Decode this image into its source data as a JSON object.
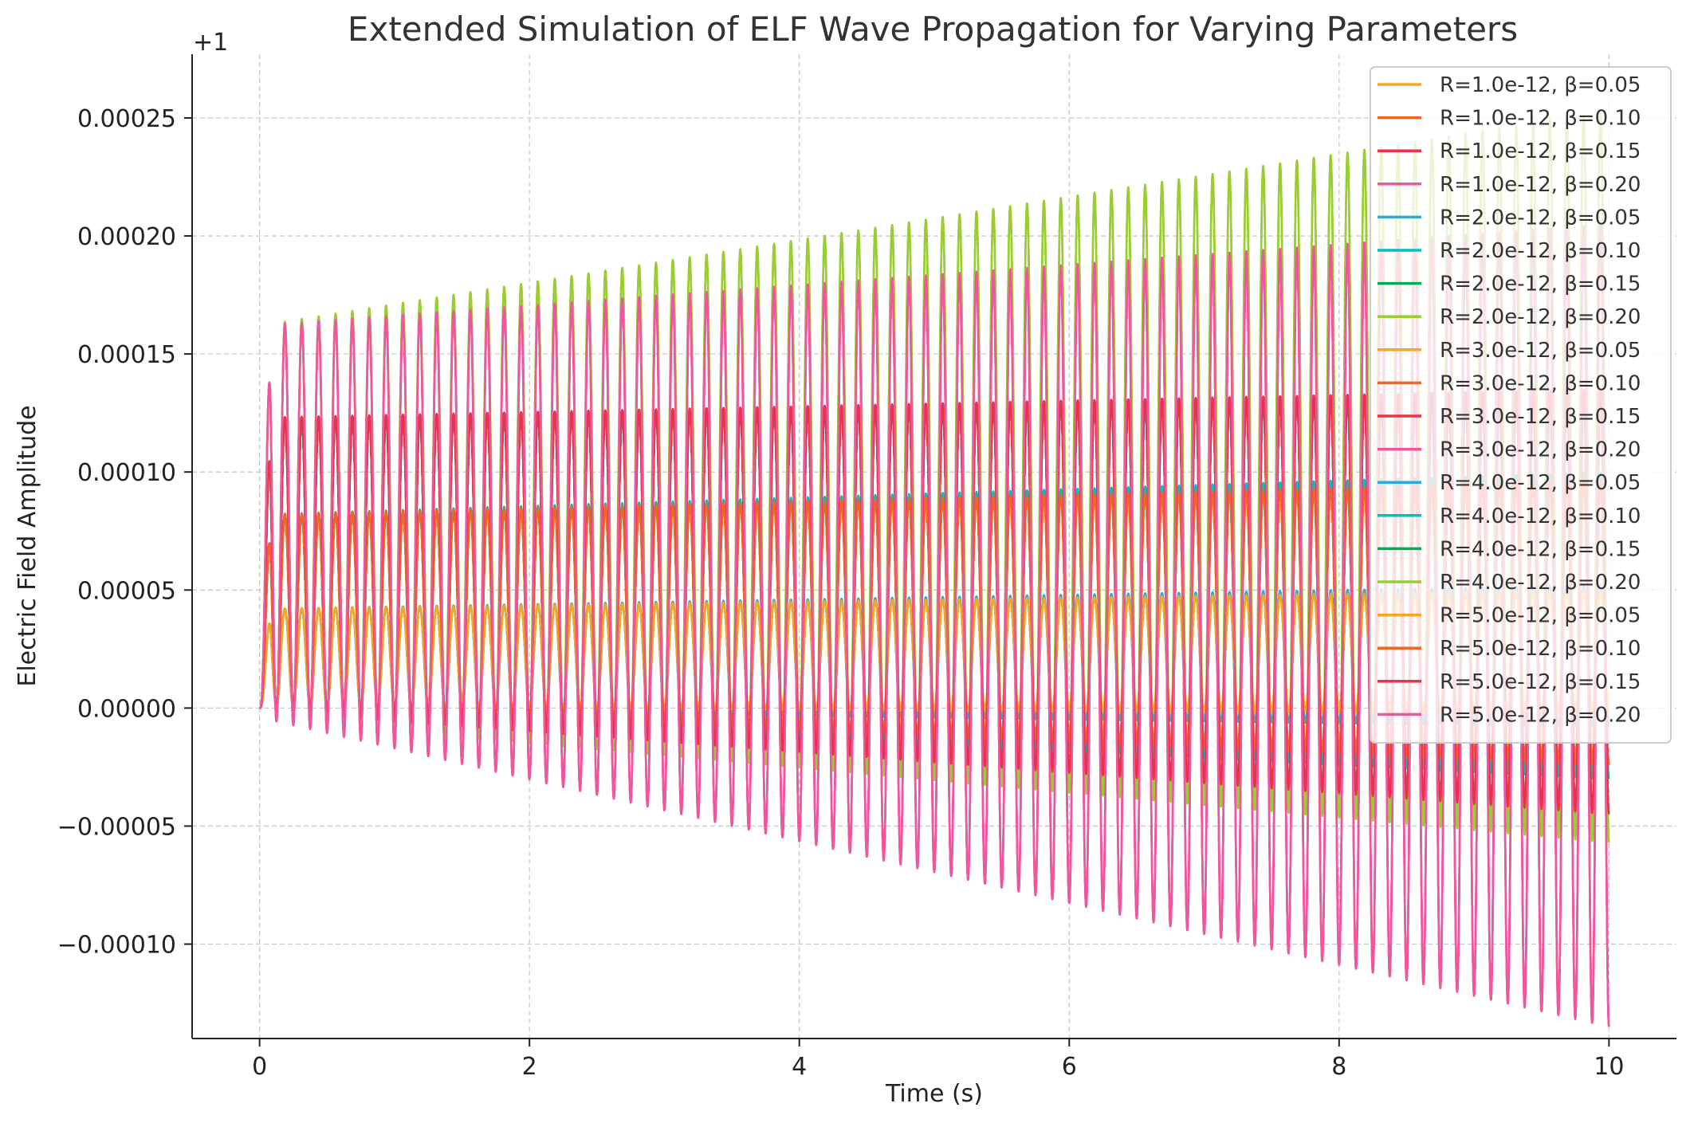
{
  "chart_data": {
    "type": "line",
    "title": "Extended Simulation of ELF Wave Propagation for Varying Parameters",
    "xlabel": "Time (s)",
    "ylabel": "Electric Field Amplitude",
    "offset_label": "+1",
    "xlim": [
      -0.5,
      10.5
    ],
    "ylim": [
      -0.00014,
      0.000277
    ],
    "x_ticks": [
      0,
      2,
      4,
      6,
      8,
      10
    ],
    "x_tick_labels": [
      "0",
      "2",
      "4",
      "6",
      "8",
      "10"
    ],
    "y_ticks": [
      -0.0001,
      -5e-05,
      0,
      5e-05,
      0.0001,
      0.00015,
      0.0002,
      0.00025
    ],
    "y_tick_labels": [
      "−0.00010",
      "−0.00005",
      "0.00000",
      "0.00005",
      "0.00010",
      "0.00015",
      "0.00020",
      "0.00025"
    ],
    "grid": true,
    "legend_position": "top-right",
    "oscillation_hz": 8,
    "t_range": [
      0,
      10
    ],
    "series": [
      {
        "name": "R=1.0e-12, β=0.05",
        "color": "#f5a623",
        "amp_start": 2.1e-05,
        "amp_end": 2.6e-05,
        "mean_start": 2.1e-05,
        "mean_end": 2.4e-05
      },
      {
        "name": "R=1.0e-12, β=0.10",
        "color": "#f26522",
        "amp_start": 4.1e-05,
        "amp_end": 6e-05,
        "mean_start": 4.1e-05,
        "mean_end": 3.6e-05
      },
      {
        "name": "R=1.0e-12, β=0.15",
        "color": "#e8334a",
        "amp_start": 6.2e-05,
        "amp_end": 9e-05,
        "mean_start": 6.1e-05,
        "mean_end": 4.5e-05
      },
      {
        "name": "R=1.0e-12, β=0.20",
        "color": "#f0569f",
        "amp_start": 8.3e-05,
        "amp_end": 0.00017,
        "mean_start": 7.9e-05,
        "mean_end": 3.5e-05
      },
      {
        "name": "R=2.0e-12, β=0.05",
        "color": "#29abe2",
        "amp_start": 2.1e-05,
        "amp_end": 3e-05,
        "mean_start": 2.1e-05,
        "mean_end": 2.2e-05
      },
      {
        "name": "R=2.0e-12, β=0.10",
        "color": "#00c1c1",
        "amp_start": 4.1e-05,
        "amp_end": 6.5e-05,
        "mean_start": 4.1e-05,
        "mean_end": 3.5e-05
      },
      {
        "name": "R=2.0e-12, β=0.15",
        "color": "#00b050",
        "amp_start": 6.2e-05,
        "amp_end": 9e-05,
        "mean_start": 6.1e-05,
        "mean_end": 4.5e-05
      },
      {
        "name": "R=2.0e-12, β=0.20",
        "color": "#9acd32",
        "amp_start": 8.3e-05,
        "amp_end": 0.000155,
        "mean_start": 7.9e-05,
        "mean_end": 9.8e-05
      },
      {
        "name": "R=3.0e-12, β=0.05",
        "color": "#f5a623",
        "amp_start": 2.1e-05,
        "amp_end": 2.6e-05,
        "mean_start": 2.1e-05,
        "mean_end": 2.4e-05
      },
      {
        "name": "R=3.0e-12, β=0.10",
        "color": "#f26522",
        "amp_start": 4.1e-05,
        "amp_end": 6e-05,
        "mean_start": 4.1e-05,
        "mean_end": 3.6e-05
      },
      {
        "name": "R=3.0e-12, β=0.15",
        "color": "#e8334a",
        "amp_start": 6.2e-05,
        "amp_end": 9e-05,
        "mean_start": 6.1e-05,
        "mean_end": 4.5e-05
      },
      {
        "name": "R=3.0e-12, β=0.20",
        "color": "#f0569f",
        "amp_start": 8.3e-05,
        "amp_end": 0.00017,
        "mean_start": 7.9e-05,
        "mean_end": 3.5e-05
      },
      {
        "name": "R=4.0e-12, β=0.05",
        "color": "#29abe2",
        "amp_start": 2.1e-05,
        "amp_end": 3e-05,
        "mean_start": 2.1e-05,
        "mean_end": 2.2e-05
      },
      {
        "name": "R=4.0e-12, β=0.10",
        "color": "#00c1c1",
        "amp_start": 4.1e-05,
        "amp_end": 6.5e-05,
        "mean_start": 4.1e-05,
        "mean_end": 3.5e-05
      },
      {
        "name": "R=4.0e-12, β=0.15",
        "color": "#00b050",
        "amp_start": 6.2e-05,
        "amp_end": 9e-05,
        "mean_start": 6.1e-05,
        "mean_end": 4.5e-05
      },
      {
        "name": "R=4.0e-12, β=0.20",
        "color": "#9acd32",
        "amp_start": 8.3e-05,
        "amp_end": 0.000155,
        "mean_start": 7.9e-05,
        "mean_end": 9.8e-05
      },
      {
        "name": "R=5.0e-12, β=0.05",
        "color": "#f5a623",
        "amp_start": 2.1e-05,
        "amp_end": 2.6e-05,
        "mean_start": 2.1e-05,
        "mean_end": 2.4e-05
      },
      {
        "name": "R=5.0e-12, β=0.10",
        "color": "#f26522",
        "amp_start": 4.1e-05,
        "amp_end": 6e-05,
        "mean_start": 4.1e-05,
        "mean_end": 3.6e-05
      },
      {
        "name": "R=5.0e-12, β=0.15",
        "color": "#e8334a",
        "amp_start": 6.2e-05,
        "amp_end": 9e-05,
        "mean_start": 6.1e-05,
        "mean_end": 4.5e-05
      },
      {
        "name": "R=5.0e-12, β=0.20",
        "color": "#f0569f",
        "amp_start": 8.3e-05,
        "amp_end": 0.00017,
        "mean_start": 7.9e-05,
        "mean_end": 3.5e-05
      }
    ]
  }
}
